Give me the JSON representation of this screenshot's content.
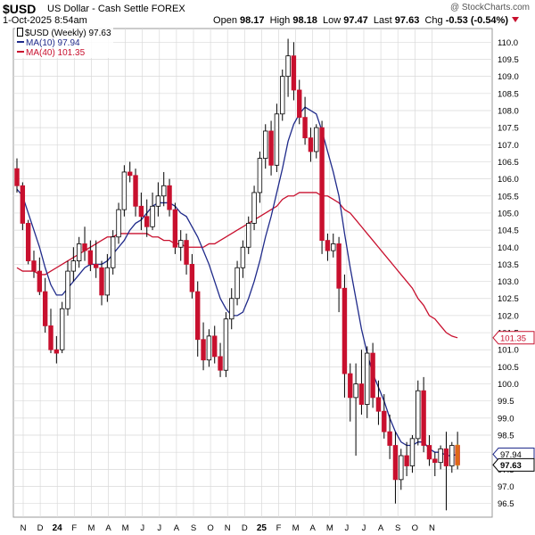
{
  "header": {
    "symbol": "$USD",
    "description": "US Dollar - Cash Settle FOREX",
    "datetime": "1-Oct-2025 8:54am",
    "copyright": "@ StockCharts.com",
    "open_label": "Open",
    "open": "98.17",
    "high_label": "High",
    "high": "98.18",
    "low_label": "Low",
    "low": "97.47",
    "last_label": "Last",
    "last": "97.63",
    "chg_label": "Chg",
    "chg": "-0.53 (-0.54%)"
  },
  "legend": [
    {
      "label": "$USD (Weekly) 97.63",
      "color": "#000000"
    },
    {
      "label": "MA(10) 97.94",
      "color": "#1f2a8a"
    },
    {
      "label": "MA(40) 101.35",
      "color": "#c8102e"
    }
  ],
  "colors": {
    "up": "#ffffff",
    "down": "#c8102e",
    "ma10": "#1f2a8a",
    "ma40": "#c8102e",
    "grid": "#d9d9d9"
  },
  "chart_data": {
    "type": "candlestick",
    "title": "$USD US Dollar - Cash Settle FOREX",
    "period": "Weekly",
    "ylim": [
      96.1,
      110.4
    ],
    "y_ticks": [
      96.5,
      97.0,
      97.5,
      98.0,
      98.5,
      99.0,
      99.5,
      100.0,
      100.5,
      101.0,
      101.5,
      102.0,
      102.5,
      103.0,
      103.5,
      104.0,
      104.5,
      105.0,
      105.5,
      106.0,
      106.5,
      107.0,
      107.5,
      108.0,
      108.5,
      109.0,
      109.5,
      110.0
    ],
    "x_labels": [
      "N",
      "D",
      "24",
      "F",
      "M",
      "A",
      "M",
      "J",
      "J",
      "A",
      "S",
      "O",
      "N",
      "D",
      "25",
      "F",
      "M",
      "A",
      "M",
      "J",
      "J",
      "A",
      "S",
      "O",
      "N"
    ],
    "price_tags": [
      {
        "label": "101.35",
        "value": 101.35,
        "style": "ma40"
      },
      {
        "label": "97.94",
        "value": 97.94,
        "style": "ma10"
      },
      {
        "label": "97.63",
        "value": 97.63,
        "style": "last"
      }
    ],
    "ohlc": [
      [
        106.3,
        106.6,
        105.6,
        105.8
      ],
      [
        105.8,
        105.9,
        104.5,
        104.7
      ],
      [
        104.7,
        104.8,
        103.5,
        103.6
      ],
      [
        103.6,
        103.9,
        103.1,
        103.3
      ],
      [
        103.3,
        103.7,
        102.6,
        102.7
      ],
      [
        102.7,
        103.1,
        101.5,
        101.7
      ],
      [
        101.7,
        102.2,
        100.9,
        101.0
      ],
      [
        101.0,
        101.4,
        100.6,
        100.9
      ],
      [
        101.0,
        102.4,
        100.9,
        102.2
      ],
      [
        102.2,
        103.6,
        102.0,
        103.3
      ],
      [
        103.3,
        104.0,
        103.0,
        103.6
      ],
      [
        103.6,
        104.3,
        103.4,
        104.1
      ],
      [
        104.1,
        104.6,
        103.6,
        103.9
      ],
      [
        103.9,
        104.2,
        103.3,
        103.5
      ],
      [
        103.5,
        104.2,
        103.1,
        103.4
      ],
      [
        103.4,
        103.6,
        102.3,
        102.6
      ],
      [
        102.6,
        103.8,
        102.4,
        103.4
      ],
      [
        103.4,
        104.5,
        103.2,
        104.3
      ],
      [
        104.3,
        105.3,
        104.1,
        105.1
      ],
      [
        105.1,
        106.4,
        104.9,
        106.2
      ],
      [
        106.2,
        106.5,
        105.9,
        106.1
      ],
      [
        106.1,
        106.3,
        104.9,
        105.2
      ],
      [
        105.2,
        105.6,
        104.5,
        104.9
      ],
      [
        104.9,
        105.4,
        104.3,
        104.6
      ],
      [
        104.6,
        105.6,
        104.5,
        105.2
      ],
      [
        105.2,
        105.9,
        104.9,
        105.5
      ],
      [
        105.5,
        106.2,
        105.2,
        105.8
      ],
      [
        105.8,
        106.0,
        104.9,
        105.1
      ],
      [
        105.1,
        105.3,
        103.8,
        104.0
      ],
      [
        104.0,
        104.5,
        103.6,
        104.2
      ],
      [
        104.2,
        104.4,
        103.2,
        103.5
      ],
      [
        103.5,
        103.8,
        102.5,
        102.7
      ],
      [
        102.7,
        103.0,
        100.8,
        101.3
      ],
      [
        101.3,
        101.8,
        100.4,
        100.7
      ],
      [
        100.7,
        101.6,
        100.5,
        101.4
      ],
      [
        101.4,
        101.7,
        100.6,
        100.8
      ],
      [
        100.8,
        101.2,
        100.2,
        100.4
      ],
      [
        100.4,
        102.1,
        100.2,
        101.9
      ],
      [
        101.9,
        102.8,
        101.6,
        102.5
      ],
      [
        102.5,
        103.6,
        102.3,
        103.4
      ],
      [
        103.4,
        104.2,
        103.1,
        104.0
      ],
      [
        104.0,
        104.9,
        103.8,
        104.7
      ],
      [
        104.7,
        105.8,
        104.5,
        105.6
      ],
      [
        105.6,
        106.8,
        105.3,
        106.6
      ],
      [
        106.6,
        107.6,
        106.3,
        107.4
      ],
      [
        107.4,
        107.7,
        106.1,
        106.4
      ],
      [
        106.4,
        108.2,
        106.2,
        107.9
      ],
      [
        107.9,
        109.2,
        107.7,
        109.0
      ],
      [
        109.0,
        110.1,
        108.4,
        109.6
      ],
      [
        109.6,
        110.0,
        108.3,
        108.6
      ],
      [
        108.6,
        108.9,
        107.6,
        107.8
      ],
      [
        107.8,
        108.4,
        107.0,
        107.2
      ],
      [
        107.2,
        107.5,
        106.5,
        106.8
      ],
      [
        106.8,
        107.6,
        106.6,
        107.5
      ],
      [
        107.5,
        107.7,
        103.8,
        104.2
      ],
      [
        104.2,
        104.4,
        103.6,
        103.9
      ],
      [
        103.9,
        104.4,
        103.7,
        104.1
      ],
      [
        104.1,
        104.3,
        102.1,
        102.8
      ],
      [
        102.8,
        103.2,
        99.6,
        100.3
      ],
      [
        100.3,
        100.6,
        98.9,
        99.6
      ],
      [
        99.6,
        100.6,
        97.9,
        100.0
      ],
      [
        100.0,
        101.0,
        99.1,
        99.4
      ],
      [
        99.4,
        101.1,
        99.0,
        100.9
      ],
      [
        100.9,
        101.2,
        99.3,
        99.6
      ],
      [
        99.6,
        100.1,
        98.8,
        99.2
      ],
      [
        99.2,
        99.7,
        98.4,
        98.6
      ],
      [
        98.6,
        99.1,
        97.8,
        98.2
      ],
      [
        98.2,
        98.6,
        96.5,
        97.2
      ],
      [
        97.2,
        98.1,
        96.9,
        97.9
      ],
      [
        97.9,
        98.3,
        97.3,
        97.6
      ],
      [
        97.6,
        98.5,
        97.4,
        98.4
      ],
      [
        98.4,
        100.1,
        98.2,
        99.8
      ],
      [
        99.8,
        100.2,
        98.0,
        98.2
      ],
      [
        98.2,
        98.5,
        97.6,
        97.8
      ],
      [
        97.8,
        98.0,
        97.3,
        97.7
      ],
      [
        97.7,
        98.2,
        97.5,
        98.1
      ],
      [
        98.1,
        98.6,
        96.3,
        97.6
      ],
      [
        97.6,
        98.3,
        97.4,
        98.2
      ],
      [
        98.2,
        98.6,
        97.5,
        97.63
      ]
    ],
    "ma10": [
      105.7,
      105.5,
      105.0,
      104.5,
      104.0,
      103.4,
      102.9,
      102.6,
      102.6,
      102.8,
      103.0,
      103.2,
      103.4,
      103.5,
      103.5,
      103.5,
      103.6,
      103.8,
      104.0,
      104.2,
      104.5,
      104.7,
      104.8,
      105.0,
      105.2,
      105.3,
      105.3,
      105.3,
      105.2,
      105.0,
      104.9,
      104.6,
      104.3,
      103.9,
      103.5,
      103.0,
      102.5,
      102.2,
      102.0,
      102.0,
      102.1,
      102.5,
      103.0,
      103.6,
      104.3,
      104.9,
      105.6,
      106.3,
      107.1,
      107.6,
      107.9,
      108.1,
      108.0,
      107.9,
      107.4,
      106.8,
      106.2,
      105.5,
      104.4,
      103.4,
      102.5,
      101.6,
      100.9,
      100.3,
      99.9,
      99.5,
      99.0,
      98.6,
      98.3,
      98.2,
      98.2,
      98.3,
      98.3,
      98.1,
      98.0,
      98.0,
      97.9,
      97.9,
      97.94
    ],
    "ma40": [
      103.4,
      103.3,
      103.3,
      103.3,
      103.2,
      103.2,
      103.3,
      103.4,
      103.5,
      103.6,
      103.7,
      103.8,
      103.9,
      104.0,
      104.1,
      104.2,
      104.3,
      104.3,
      104.4,
      104.4,
      104.4,
      104.4,
      104.4,
      104.4,
      104.3,
      104.3,
      104.2,
      104.2,
      104.1,
      104.1,
      104.0,
      104.0,
      104.0,
      104.0,
      104.1,
      104.1,
      104.2,
      104.3,
      104.4,
      104.5,
      104.6,
      104.7,
      104.8,
      104.9,
      105.0,
      105.1,
      105.2,
      105.4,
      105.5,
      105.5,
      105.6,
      105.6,
      105.6,
      105.6,
      105.5,
      105.5,
      105.4,
      105.3,
      105.1,
      105.0,
      104.8,
      104.6,
      104.4,
      104.2,
      104.0,
      103.8,
      103.6,
      103.4,
      103.2,
      103.0,
      102.8,
      102.5,
      102.3,
      102.0,
      101.9,
      101.7,
      101.5,
      101.4,
      101.35
    ]
  }
}
